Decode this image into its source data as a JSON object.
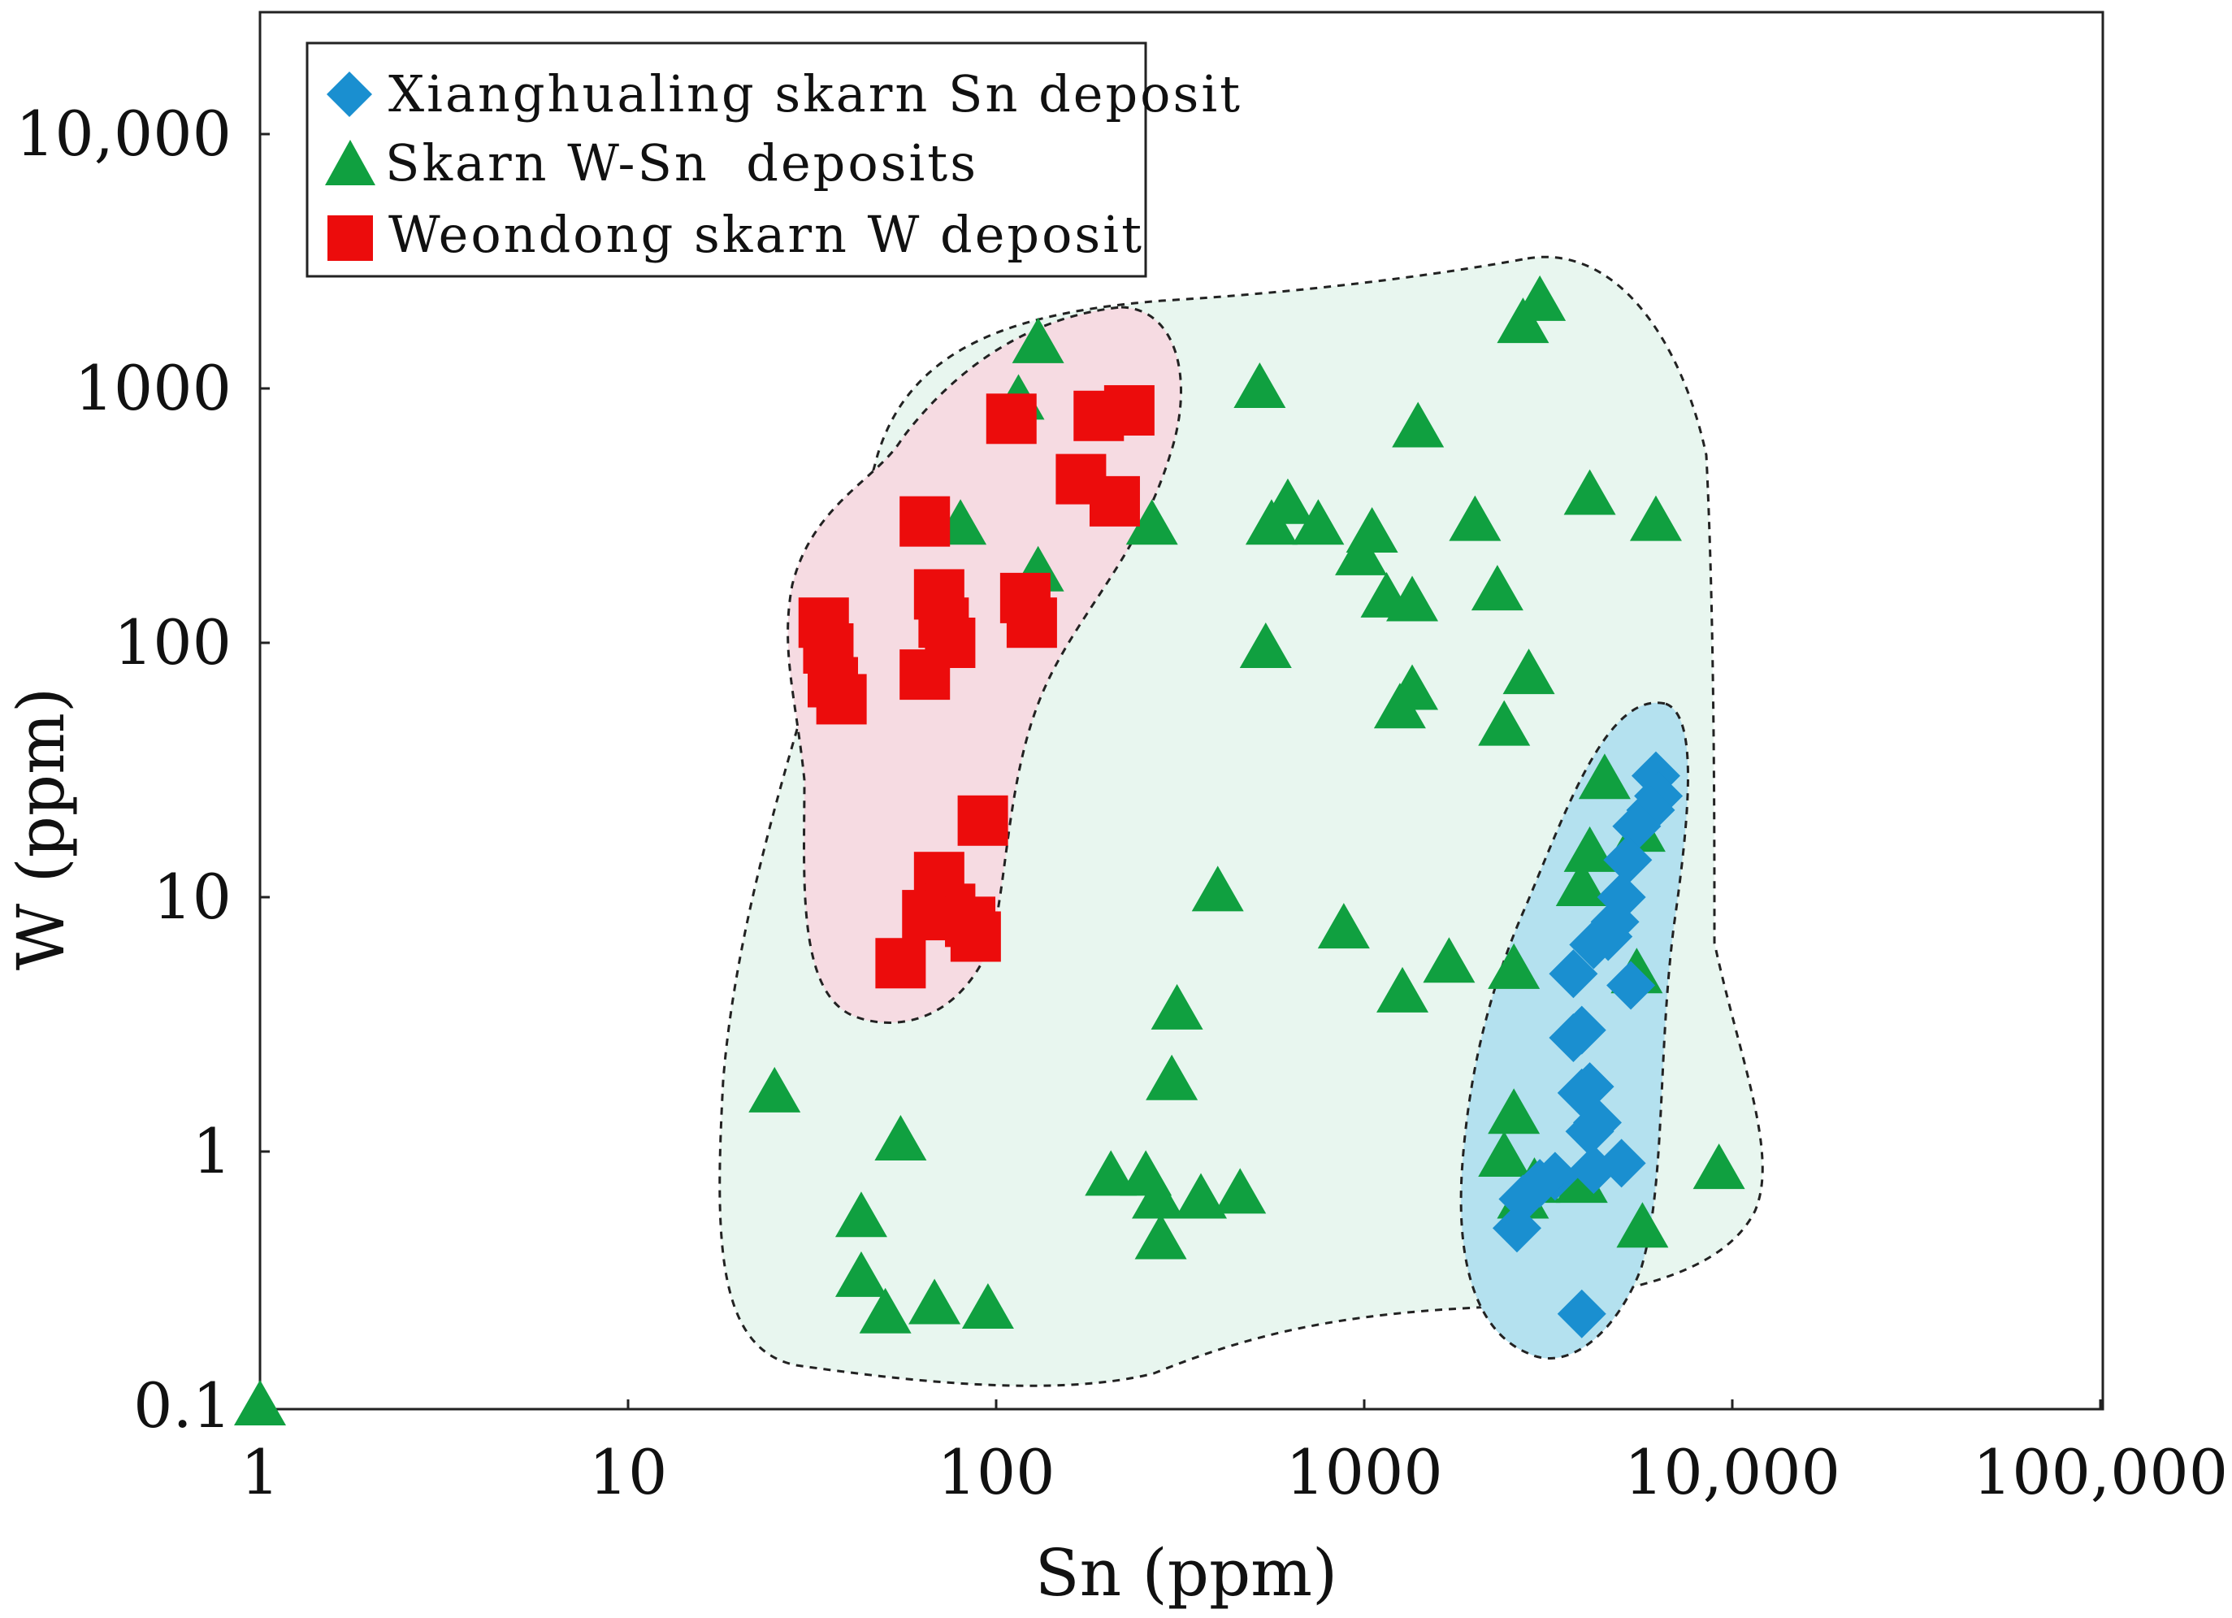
{
  "chart_data": {
    "type": "scatter",
    "x_scale": "log",
    "y_scale": "log",
    "xlabel": "Sn (ppm)",
    "ylabel": "W (ppm)",
    "xlim": [
      1,
      100000
    ],
    "ylim": [
      0.1,
      25000
    ],
    "x_ticks": [
      {
        "value": 1,
        "label": "1"
      },
      {
        "value": 10,
        "label": "10"
      },
      {
        "value": 100,
        "label": "100"
      },
      {
        "value": 1000,
        "label": "1000"
      },
      {
        "value": 10000,
        "label": "10,000"
      },
      {
        "value": 100000,
        "label": "100,000"
      }
    ],
    "y_ticks": [
      {
        "value": 0.1,
        "label": "0.1"
      },
      {
        "value": 1,
        "label": "1"
      },
      {
        "value": 10,
        "label": "10"
      },
      {
        "value": 100,
        "label": "100"
      },
      {
        "value": 1000,
        "label": "1000"
      },
      {
        "value": 10000,
        "label": "10,000"
      }
    ],
    "legend_position": "top-left",
    "series": [
      {
        "name": "Xianghualing skarn Sn deposit",
        "marker": "diamond",
        "color": "#1a8fd0",
        "points": [
          [
            6200,
            30
          ],
          [
            6300,
            25
          ],
          [
            6000,
            22
          ],
          [
            5500,
            19
          ],
          [
            5200,
            14
          ],
          [
            5000,
            10
          ],
          [
            4800,
            8
          ],
          [
            4600,
            7
          ],
          [
            4200,
            6.5
          ],
          [
            3700,
            5
          ],
          [
            5300,
            4.5
          ],
          [
            3900,
            3
          ],
          [
            3700,
            2.8
          ],
          [
            4100,
            1.8
          ],
          [
            3900,
            1.7
          ],
          [
            4300,
            1.3
          ],
          [
            4100,
            1.2
          ],
          [
            5000,
            0.9
          ],
          [
            4200,
            0.85
          ],
          [
            3300,
            0.8
          ],
          [
            3000,
            0.75
          ],
          [
            2700,
            0.65
          ],
          [
            2600,
            0.5
          ],
          [
            3900,
            0.23
          ]
        ]
      },
      {
        "name": "Skarn W-Sn  deposits",
        "marker": "triangle",
        "color": "#10a040",
        "points": [
          [
            1,
            0.1
          ],
          [
            25,
            1.7
          ],
          [
            55,
            1.1
          ],
          [
            43,
            0.55
          ],
          [
            43,
            0.32
          ],
          [
            50,
            0.23
          ],
          [
            68,
            0.25
          ],
          [
            95,
            0.24
          ],
          [
            205,
            0.8
          ],
          [
            255,
            0.8
          ],
          [
            275,
            0.65
          ],
          [
            280,
            0.45
          ],
          [
            360,
            0.65
          ],
          [
            460,
            0.68
          ],
          [
            300,
            1.9
          ],
          [
            310,
            3.6
          ],
          [
            400,
            10.5
          ],
          [
            880,
            7.5
          ],
          [
            1270,
            4.2
          ],
          [
            1700,
            5.5
          ],
          [
            2550,
            5.2
          ],
          [
            2550,
            1.4
          ],
          [
            2400,
            0.95
          ],
          [
            2900,
            0.75
          ],
          [
            2700,
            0.65
          ],
          [
            3900,
            0.75
          ],
          [
            5700,
            0.5
          ],
          [
            9200,
            0.85
          ],
          [
            5500,
            5
          ],
          [
            3900,
            11
          ],
          [
            4100,
            15
          ],
          [
            5600,
            18
          ],
          [
            4500,
            29
          ],
          [
            2400,
            47
          ],
          [
            2800,
            75
          ],
          [
            1350,
            65
          ],
          [
            1250,
            55
          ],
          [
            2300,
            160
          ],
          [
            1350,
            145
          ],
          [
            1150,
            150
          ],
          [
            980,
            220
          ],
          [
            1050,
            270
          ],
          [
            750,
            290
          ],
          [
            620,
            350
          ],
          [
            560,
            290
          ],
          [
            2000,
            300
          ],
          [
            4100,
            380
          ],
          [
            6200,
            300
          ],
          [
            1400,
            700
          ],
          [
            520,
            1000
          ],
          [
            2700,
            1800
          ],
          [
            3000,
            2200
          ],
          [
            130,
            1500
          ],
          [
            115,
            900
          ],
          [
            80,
            290
          ],
          [
            265,
            290
          ],
          [
            130,
            190
          ],
          [
            540,
            95
          ]
        ]
      },
      {
        "name": "Weondong skarn W deposit",
        "marker": "square",
        "color": "#ec0c0c",
        "points": [
          [
            110,
            760
          ],
          [
            190,
            780
          ],
          [
            230,
            820
          ],
          [
            170,
            440
          ],
          [
            210,
            360
          ],
          [
            64,
            300
          ],
          [
            70,
            155
          ],
          [
            72,
            120
          ],
          [
            75,
            100
          ],
          [
            64,
            75
          ],
          [
            120,
            150
          ],
          [
            125,
            120
          ],
          [
            34,
            120
          ],
          [
            35,
            95
          ],
          [
            36,
            70
          ],
          [
            38,
            60
          ],
          [
            92,
            20
          ],
          [
            70,
            12
          ],
          [
            65,
            8.5
          ],
          [
            75,
            9
          ],
          [
            85,
            8
          ],
          [
            88,
            7
          ],
          [
            55,
            5.5
          ]
        ]
      }
    ],
    "regions": [
      {
        "name": "Skarn W-Sn field",
        "fill": "#e8f6ef",
        "edge": "dotted"
      },
      {
        "name": "Weondong field",
        "fill": "#f6dbe2",
        "edge": "dotted"
      },
      {
        "name": "Xianghualing field",
        "fill": "#b4e1ef",
        "edge": "dotted"
      }
    ]
  }
}
